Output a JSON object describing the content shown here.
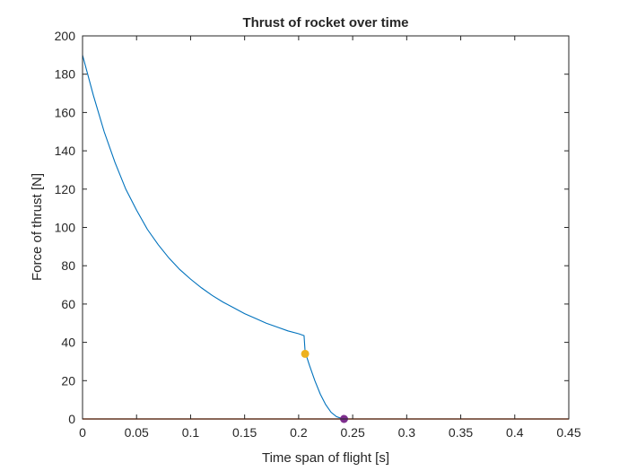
{
  "chart_data": {
    "type": "line",
    "title": "Thrust of rocket over time",
    "xlabel": "Time span of flight [s]",
    "ylabel": "Force of thrust [N]",
    "xlim": [
      0,
      0.45
    ],
    "ylim": [
      0,
      200
    ],
    "xticks": [
      0,
      0.05,
      0.1,
      0.15,
      0.2,
      0.25,
      0.3,
      0.35,
      0.4,
      0.45
    ],
    "xtick_labels": [
      "0",
      "0.05",
      "0.1",
      "0.15",
      "0.2",
      "0.25",
      "0.3",
      "0.35",
      "0.4",
      "0.45"
    ],
    "yticks": [
      0,
      20,
      40,
      60,
      80,
      100,
      120,
      140,
      160,
      180,
      200
    ],
    "ytick_labels": [
      "0",
      "20",
      "40",
      "60",
      "80",
      "100",
      "120",
      "140",
      "160",
      "180",
      "200"
    ],
    "grid": false,
    "series": [
      {
        "color": "#0072BD",
        "x": [
          0,
          0.01,
          0.02,
          0.03,
          0.04,
          0.05,
          0.06,
          0.07,
          0.08,
          0.09,
          0.1,
          0.11,
          0.12,
          0.13,
          0.14,
          0.15,
          0.16,
          0.17,
          0.18,
          0.19,
          0.2,
          0.205,
          0.206,
          0.21,
          0.215,
          0.22,
          0.225,
          0.23,
          0.235,
          0.24,
          0.242
        ],
        "y": [
          190,
          169,
          150,
          134,
          120,
          109,
          99,
          91,
          84,
          78,
          73,
          68.5,
          64.5,
          61,
          58,
          55,
          52.5,
          50,
          48,
          46,
          44.5,
          43.5,
          35,
          28,
          20,
          13,
          7.5,
          3.5,
          1.2,
          0.2,
          0
        ]
      },
      {
        "color": "#D95319",
        "x": [
          0,
          0.45
        ],
        "y": [
          0,
          0
        ]
      }
    ],
    "markers": [
      {
        "x": 0.206,
        "y": 34,
        "color": "#EDB120"
      },
      {
        "x": 0.242,
        "y": 0,
        "color": "#7E2F8E"
      }
    ]
  }
}
